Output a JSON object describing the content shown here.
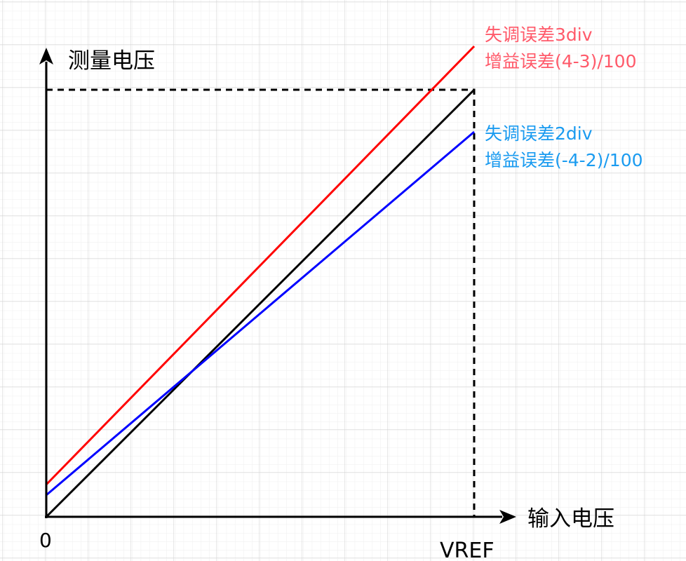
{
  "axes": {
    "y_label": "测量电压",
    "x_label": "输入电压",
    "origin_label": "0",
    "x_end_label": "VREF"
  },
  "annotations": {
    "red": {
      "line1": "失调误差3div",
      "line2": "增益误差(4-3)/100",
      "color": "#ff5a6a"
    },
    "blue": {
      "line1": "失调误差2div",
      "line2": "增益误差(-4-2)/100",
      "color": "#1a9bf0"
    }
  },
  "lines": {
    "ideal_color": "#000000",
    "red_color": "#ff0000",
    "blue_color": "#0000ff"
  }
}
